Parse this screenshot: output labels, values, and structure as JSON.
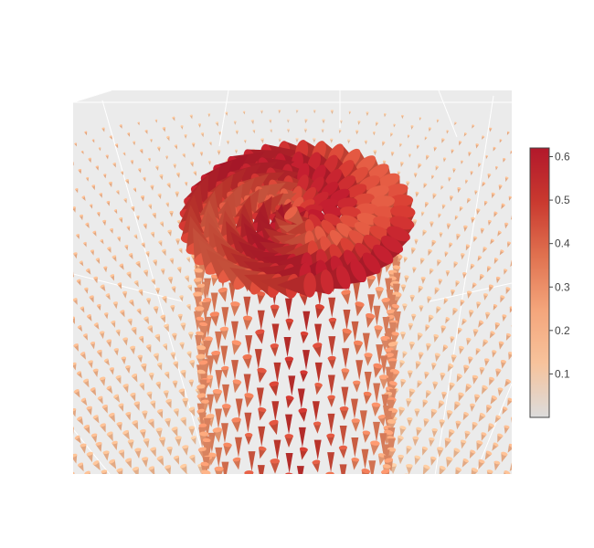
{
  "chart_data": {
    "type": "cone",
    "title": "",
    "colorscale": [
      "#dcdcdc",
      "#f7c39c",
      "#f4a57b",
      "#e0714f",
      "#c9392f",
      "#b2182b"
    ],
    "scene_background": "#ebebeb",
    "grid": true,
    "colorbar": {
      "range": [
        0,
        0.62
      ],
      "ticks": [
        0.1,
        0.2,
        0.3,
        0.4,
        0.5,
        0.6
      ],
      "tick_labels": [
        "0.1",
        "0.2",
        "0.3",
        "0.4",
        "0.5",
        "0.6"
      ],
      "placement": "right"
    },
    "vector_field": {
      "description_free": true,
      "core_magnitude": 0.6,
      "outer_magnitude": 0.15,
      "structure": "vortex core"
    }
  }
}
